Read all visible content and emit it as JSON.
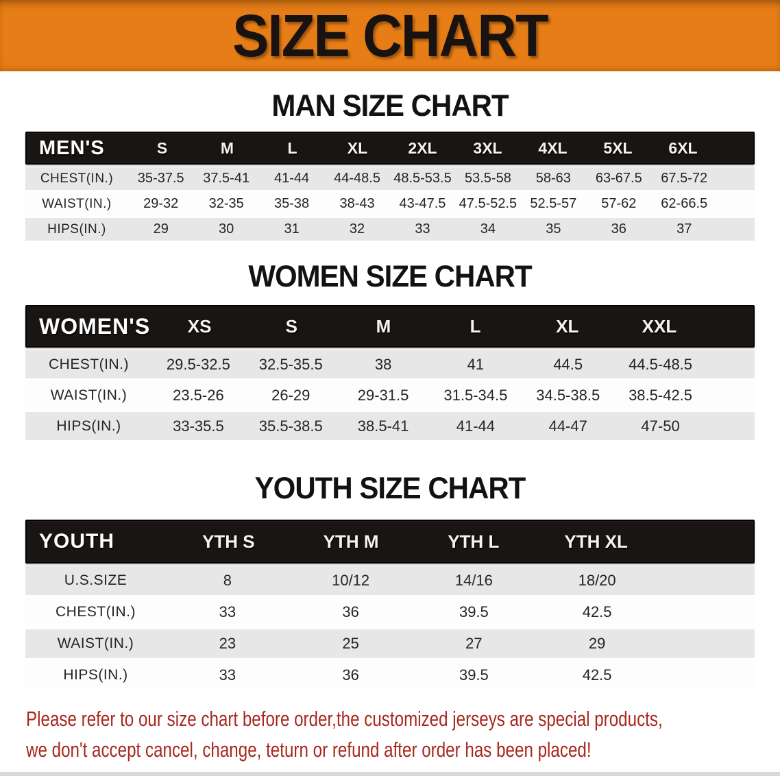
{
  "banner": {
    "title": "SIZE CHART",
    "bg_color": "#e67d17",
    "text_color": "#181310"
  },
  "colors": {
    "header_bar": "#191513",
    "row_stripe_gray": "#e7e7e7",
    "row_stripe_white": "#fdfdfd",
    "disclaimer_red": "#a8271e"
  },
  "sections": [
    {
      "heading": "MAN SIZE CHART",
      "table": {
        "group_label": "MEN'S",
        "sizes": [
          "S",
          "M",
          "L",
          "XL",
          "2XL",
          "3XL",
          "4XL",
          "5XL",
          "6XL"
        ],
        "rows": [
          {
            "label": "CHEST(IN.)",
            "values": [
              "35-37.5",
              "37.5-41",
              "41-44",
              "44-48.5",
              "48.5-53.5",
              "53.5-58",
              "58-63",
              "63-67.5",
              "67.5-72"
            ]
          },
          {
            "label": "WAIST(IN.)",
            "values": [
              "29-32",
              "32-35",
              "35-38",
              "38-43",
              "43-47.5",
              "47.5-52.5",
              "52.5-57",
              "57-62",
              "62-66.5"
            ]
          },
          {
            "label": "HIPS(IN.)",
            "values": [
              "29",
              "30",
              "31",
              "32",
              "33",
              "34",
              "35",
              "36",
              "37"
            ]
          }
        ]
      }
    },
    {
      "heading": "WOMEN SIZE CHART",
      "table": {
        "group_label": "WOMEN'S",
        "sizes": [
          "XS",
          "S",
          "M",
          "L",
          "XL",
          "XXL"
        ],
        "rows": [
          {
            "label": "CHEST(IN.)",
            "values": [
              "29.5-32.5",
              "32.5-35.5",
              "38",
              "41",
              "44.5",
              "44.5-48.5"
            ]
          },
          {
            "label": "WAIST(IN.)",
            "values": [
              "23.5-26",
              "26-29",
              "29-31.5",
              "31.5-34.5",
              "34.5-38.5",
              "38.5-42.5"
            ]
          },
          {
            "label": "HIPS(IN.)",
            "values": [
              "33-35.5",
              "35.5-38.5",
              "38.5-41",
              "41-44",
              "44-47",
              "47-50"
            ]
          }
        ]
      }
    },
    {
      "heading": "YOUTH SIZE CHART",
      "table": {
        "group_label": "YOUTH",
        "sizes": [
          "YTH S",
          "YTH M",
          "YTH L",
          "YTH XL"
        ],
        "rows": [
          {
            "label": "U.S.SIZE",
            "values": [
              "8",
              "10/12",
              "14/16",
              "18/20"
            ]
          },
          {
            "label": "CHEST(IN.)",
            "values": [
              "33",
              "36",
              "39.5",
              "42.5"
            ]
          },
          {
            "label": "WAIST(IN.)",
            "values": [
              "23",
              "25",
              "27",
              "29"
            ]
          },
          {
            "label": "HIPS(IN.)",
            "values": [
              "33",
              "36",
              "39.5",
              "42.5"
            ]
          }
        ]
      }
    }
  ],
  "disclaimer": {
    "line1": "Please refer to our size chart before order,the customized jerseys are special products,",
    "line2": "we don't accept cancel, change, teturn or refund after order has been placed!"
  }
}
